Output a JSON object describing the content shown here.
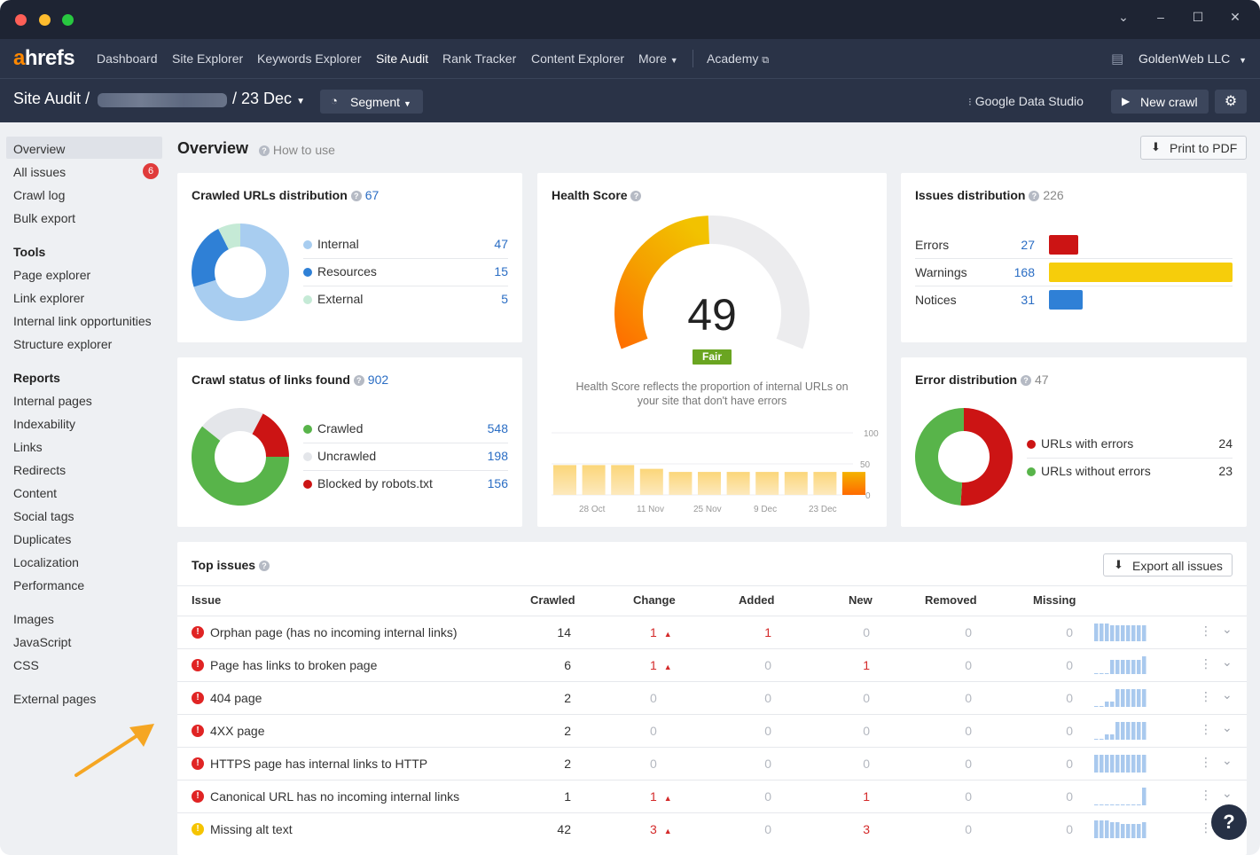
{
  "nav": {
    "logo_a": "a",
    "logo_rest": "hrefs",
    "items": [
      "Dashboard",
      "Site Explorer",
      "Keywords Explorer",
      "Site Audit",
      "Rank Tracker",
      "Content Explorer",
      "More",
      "Academy"
    ],
    "account": "GoldenWeb LLC"
  },
  "project": {
    "root": "Site Audit",
    "date": "23 Dec",
    "segment": "Segment",
    "gds": "Google Data Studio",
    "new_crawl": "New crawl"
  },
  "sidebar": {
    "top": [
      "Overview",
      "All issues",
      "Crawl log",
      "Bulk export"
    ],
    "all_issues_badge": "6",
    "tools_head": "Tools",
    "tools": [
      "Page explorer",
      "Link explorer",
      "Internal link opportunities",
      "Structure explorer"
    ],
    "reports_head": "Reports",
    "reports": [
      "Internal pages",
      "Indexability",
      "Links",
      "Redirects",
      "Content",
      "Social tags",
      "Duplicates",
      "Localization",
      "Performance"
    ],
    "reports2": [
      "Images",
      "JavaScript",
      "CSS"
    ],
    "reports3": [
      "External pages"
    ]
  },
  "main": {
    "title": "Overview",
    "how_to": "How to use",
    "print": "Print to PDF"
  },
  "crawled": {
    "title": "Crawled URLs distribution",
    "count": "67",
    "rows": [
      {
        "label": "Internal",
        "value": "47",
        "color": "#a8cdf0"
      },
      {
        "label": "Resources",
        "value": "15",
        "color": "#2f80d6"
      },
      {
        "label": "External",
        "value": "5",
        "color": "#c5ead6"
      }
    ]
  },
  "crawl_status": {
    "title": "Crawl status of links found",
    "count": "902",
    "rows": [
      {
        "label": "Crawled",
        "value": "548",
        "color": "#58b44a"
      },
      {
        "label": "Uncrawled",
        "value": "198",
        "color": "#e4e6ea"
      },
      {
        "label": "Blocked by robots.txt",
        "value": "156",
        "color": "#cc1414"
      }
    ]
  },
  "health": {
    "title": "Health Score",
    "score": "49",
    "grade": "Fair",
    "caption1": "Health Score reflects the proportion of internal URLs on",
    "caption2": "your site that don't have errors",
    "axis": [
      "100",
      "50",
      "0"
    ],
    "dates": [
      "28 Oct",
      "11 Nov",
      "25 Nov",
      "9 Dec",
      "23 Dec"
    ],
    "history": [
      48,
      48,
      48,
      42,
      37,
      37,
      37,
      37,
      37,
      37,
      37
    ]
  },
  "issues_dist": {
    "title": "Issues distribution",
    "count": "226",
    "rows": [
      {
        "label": "Errors",
        "value": "27",
        "color": "#cc1414"
      },
      {
        "label": "Warnings",
        "value": "168",
        "color": "#f6cd0b"
      },
      {
        "label": "Notices",
        "value": "31",
        "color": "#2f80d6"
      }
    ]
  },
  "error_dist": {
    "title": "Error distribution",
    "count": "47",
    "rows": [
      {
        "label": "URLs with errors",
        "value": "24",
        "color": "#cc1414"
      },
      {
        "label": "URLs without errors",
        "value": "23",
        "color": "#58b44a"
      }
    ]
  },
  "top_issues": {
    "title": "Top issues",
    "export": "Export all issues",
    "headers": [
      "Issue",
      "Crawled",
      "Change",
      "Added",
      "New",
      "Removed",
      "Missing"
    ],
    "rows": [
      {
        "type": "error",
        "issue": "Orphan page (has no incoming internal links)",
        "crawled": "14",
        "change": "1",
        "change_up": true,
        "added": "1",
        "new": "0",
        "removed": "0",
        "missing": "0",
        "spark": [
          20,
          20,
          20,
          18,
          18,
          18,
          18,
          18,
          18,
          18
        ]
      },
      {
        "type": "error",
        "issue": "Page has links to broken page",
        "crawled": "6",
        "change": "1",
        "change_up": true,
        "added": "0",
        "new": "1",
        "removed": "0",
        "missing": "0",
        "spark": [
          1,
          1,
          1,
          16,
          16,
          16,
          16,
          16,
          16,
          20
        ]
      },
      {
        "type": "error",
        "issue": "404 page",
        "crawled": "2",
        "change": "0",
        "change_up": false,
        "added": "0",
        "new": "0",
        "removed": "0",
        "missing": "0",
        "spark": [
          1,
          1,
          6,
          6,
          20,
          20,
          20,
          20,
          20,
          20
        ]
      },
      {
        "type": "error",
        "issue": "4XX page",
        "crawled": "2",
        "change": "0",
        "change_up": false,
        "added": "0",
        "new": "0",
        "removed": "0",
        "missing": "0",
        "spark": [
          1,
          1,
          6,
          6,
          20,
          20,
          20,
          20,
          20,
          20
        ]
      },
      {
        "type": "error",
        "issue": "HTTPS page has internal links to HTTP",
        "crawled": "2",
        "change": "0",
        "change_up": false,
        "added": "0",
        "new": "0",
        "removed": "0",
        "missing": "0",
        "spark": [
          20,
          20,
          20,
          20,
          20,
          20,
          20,
          20,
          20,
          20
        ]
      },
      {
        "type": "error",
        "issue": "Canonical URL has no incoming internal links",
        "crawled": "1",
        "change": "1",
        "change_up": true,
        "added": "0",
        "new": "1",
        "removed": "0",
        "missing": "0",
        "spark": [
          1,
          1,
          1,
          1,
          1,
          1,
          1,
          1,
          1,
          20
        ]
      },
      {
        "type": "warning",
        "issue": "Missing alt text",
        "crawled": "42",
        "change": "3",
        "change_up": true,
        "added": "0",
        "new": "3",
        "removed": "0",
        "missing": "0",
        "spark": [
          20,
          20,
          20,
          18,
          18,
          16,
          16,
          16,
          16,
          18
        ]
      }
    ]
  }
}
